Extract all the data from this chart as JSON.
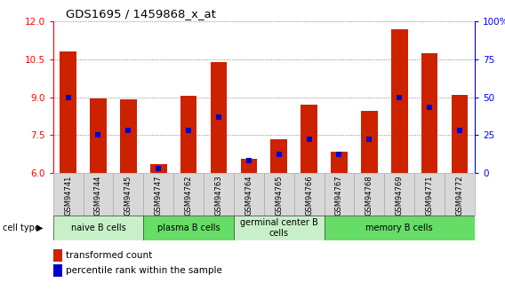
{
  "title": "GDS1695 / 1459868_x_at",
  "samples": [
    "GSM94741",
    "GSM94744",
    "GSM94745",
    "GSM94747",
    "GSM94762",
    "GSM94763",
    "GSM94764",
    "GSM94765",
    "GSM94766",
    "GSM94767",
    "GSM94768",
    "GSM94769",
    "GSM94771",
    "GSM94772"
  ],
  "transformed_count": [
    10.8,
    8.95,
    8.9,
    6.35,
    9.05,
    10.4,
    6.55,
    7.35,
    8.7,
    6.85,
    8.45,
    11.7,
    10.75,
    9.1
  ],
  "percentile_rank": [
    50,
    25,
    28,
    3,
    28,
    37,
    8,
    12,
    22,
    12,
    22,
    50,
    43,
    28
  ],
  "ylim_left": [
    6,
    12
  ],
  "ylim_right": [
    0,
    100
  ],
  "yticks_left": [
    6,
    7.5,
    9,
    10.5,
    12
  ],
  "yticks_right": [
    0,
    25,
    50,
    75,
    100
  ],
  "ytick_labels_right": [
    "0",
    "25",
    "50",
    "75",
    "100%"
  ],
  "cell_groups": [
    {
      "label": "naive B cells",
      "start": 0,
      "end": 3,
      "color": "#c8f0c8"
    },
    {
      "label": "plasma B cells",
      "start": 3,
      "end": 6,
      "color": "#66dd66"
    },
    {
      "label": "germinal center B\ncells",
      "start": 6,
      "end": 9,
      "color": "#c8f0c8"
    },
    {
      "label": "memory B cells",
      "start": 9,
      "end": 14,
      "color": "#66dd66"
    }
  ],
  "bar_color": "#cc2200",
  "percentile_color": "#0000cc",
  "bar_width": 0.55,
  "grid_color": "#000000",
  "background_plot": "#ffffff",
  "xtick_bg": "#d8d8d8",
  "legend_labels": [
    "transformed count",
    "percentile rank within the sample"
  ]
}
